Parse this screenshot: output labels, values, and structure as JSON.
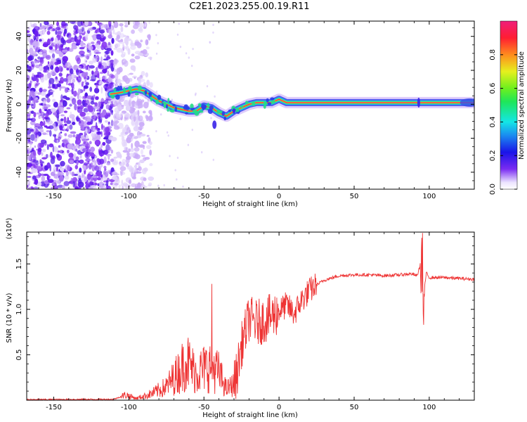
{
  "title": "C2E1.2023.255.00.19.R11",
  "colors": {
    "snr_line": "#ee3333",
    "ridge_core": "#ff2a4a",
    "ridge_mid": "#22dd88",
    "ridge_outer": "#4455ee",
    "noise": "#6a1cf0"
  },
  "chart_data": [
    {
      "type": "heatmap",
      "title": "C2E1.2023.255.00.19.R11",
      "xlabel": "Height of straight line (km)",
      "ylabel": "Frequency (Hz)",
      "xlim": [
        -168,
        130
      ],
      "ylim": [
        -50,
        49
      ],
      "x_ticks": [
        "-150",
        "-100",
        "-50",
        "0",
        "50",
        "100"
      ],
      "x_tick_values": [
        -150,
        -100,
        -50,
        0,
        50,
        100
      ],
      "y_ticks": [
        "-40",
        "-20",
        "0",
        "20",
        "40"
      ],
      "y_tick_values": [
        -40,
        -20,
        0,
        20,
        40
      ],
      "colorbar": {
        "label": "Normalized spectral amplitude",
        "range": [
          0,
          1
        ],
        "ticks": [
          "0.0",
          "0.2",
          "0.4",
          "0.6",
          "0.8"
        ],
        "tick_values": [
          0.0,
          0.2,
          0.4,
          0.6,
          0.8
        ],
        "colormap": "rainbow"
      },
      "ridge": {
        "x": [
          -112,
          -105,
          -100,
          -95,
          -90,
          -85,
          -80,
          -75,
          -70,
          -65,
          -60,
          -55,
          -50,
          -45,
          -40,
          -35,
          -30,
          -25,
          -20,
          -15,
          -10,
          -5,
          0,
          5,
          10,
          20,
          40,
          60,
          80,
          92,
          100,
          115,
          130
        ],
        "y": [
          6,
          7,
          8,
          9,
          8,
          5,
          2,
          0,
          -2,
          -3,
          -4,
          -4,
          -1,
          -2,
          -5,
          -7,
          -4,
          -2,
          0,
          1,
          1,
          1,
          3,
          1,
          1,
          1,
          1,
          1,
          1,
          1,
          1,
          1,
          1
        ]
      }
    },
    {
      "type": "line",
      "xlabel": "Height of straight line (km)",
      "ylabel": "SNR (10 * v/v)",
      "y_multiplier": "(x10⁴)",
      "xlim": [
        -168,
        130
      ],
      "ylim": [
        0,
        18500
      ],
      "x_ticks": [
        "-150",
        "-100",
        "-50",
        "0",
        "50",
        "100"
      ],
      "x_tick_values": [
        -150,
        -100,
        -50,
        0,
        50,
        100
      ],
      "y_ticks": [
        "0.5",
        "1.0",
        "1.5"
      ],
      "y_tick_values": [
        5000,
        10000,
        15000
      ],
      "series": [
        {
          "x": [
            -168,
            -110,
            -102,
            -95,
            -85,
            -75,
            -70,
            -65,
            -62,
            -58,
            -55,
            -50,
            -45,
            -40,
            -35,
            -30,
            -28,
            -25,
            -20,
            -15,
            -10,
            -5,
            0,
            5,
            10,
            15,
            20,
            25,
            30,
            40,
            50,
            60,
            70,
            80,
            88,
            92,
            95,
            96,
            98,
            100,
            110,
            120,
            130
          ],
          "y": [
            60,
            100,
            600,
            200,
            700,
            1500,
            2500,
            3500,
            4500,
            3500,
            3000,
            3500,
            3800,
            3000,
            1200,
            1800,
            3000,
            6000,
            9000,
            8500,
            8800,
            9200,
            9800,
            10500,
            9500,
            11000,
            12000,
            12700,
            13200,
            13700,
            13800,
            13800,
            13700,
            13800,
            13900,
            13700,
            15500,
            11000,
            14000,
            13500,
            13500,
            13400,
            13300
          ]
        }
      ]
    }
  ]
}
